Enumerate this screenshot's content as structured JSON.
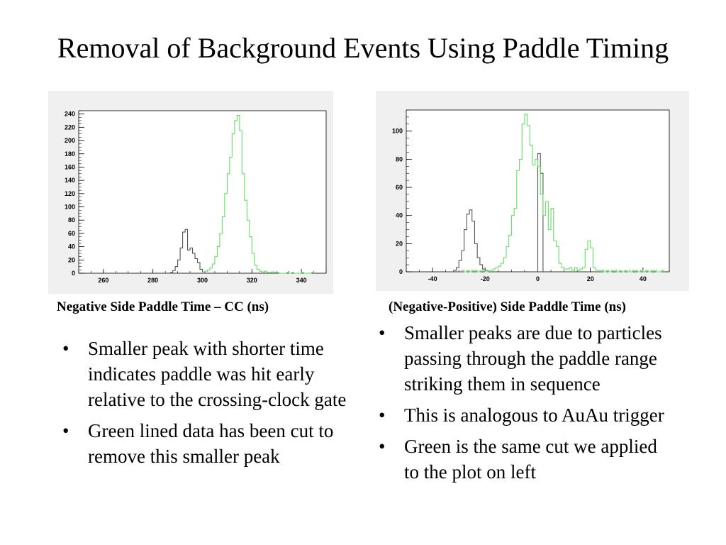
{
  "slide": {
    "title": "Removal of Background Events Using Paddle Timing"
  },
  "left": {
    "caption": "Negative Side Paddle Time – CC (ns)",
    "bullets": [
      "Smaller peak with shorter time indicates paddle was hit early relative to the crossing-clock gate",
      "Green lined data has been cut to remove this smaller peak"
    ]
  },
  "right": {
    "caption": "(Negative-Positive) Side Paddle Time (ns)",
    "bullets": [
      "Smaller peaks are due to particles passing through the paddle range striking them in sequence",
      "This is analogous to AuAu trigger",
      "Green is the same cut we applied to the plot on left"
    ]
  },
  "colors": {
    "all": "#555555",
    "cut": "#66dd66",
    "frame_bg": "#f0f0f0"
  },
  "chart_data": [
    {
      "type": "histogram",
      "xlim": [
        250,
        350
      ],
      "ylim": [
        0,
        245
      ],
      "xticks": [
        260,
        280,
        300,
        320,
        340
      ],
      "yticks": [
        0,
        20,
        40,
        60,
        80,
        100,
        120,
        140,
        160,
        180,
        200,
        220,
        240
      ],
      "bin_width": 1,
      "grid": false,
      "series": [
        {
          "x": [
            287,
            288,
            289,
            290,
            291,
            292,
            293,
            294,
            295,
            296,
            297,
            298,
            299,
            300
          ],
          "values": [
            1,
            4,
            10,
            20,
            38,
            62,
            66,
            35,
            38,
            30,
            22,
            16,
            6,
            2
          ]
        },
        {
          "x": [
            300,
            301,
            302,
            303,
            304,
            305,
            306,
            307,
            308,
            309,
            310,
            311,
            312,
            313,
            314,
            315,
            316,
            317,
            318,
            319,
            320,
            321,
            322,
            323,
            324,
            325,
            326,
            327,
            328,
            329,
            330,
            331,
            332,
            333,
            334,
            335,
            336,
            337,
            338,
            339,
            340,
            341,
            342,
            343,
            344
          ],
          "values": [
            2,
            3,
            5,
            8,
            14,
            25,
            40,
            60,
            85,
            120,
            150,
            175,
            210,
            230,
            238,
            215,
            150,
            110,
            80,
            55,
            30,
            12,
            6,
            3,
            2,
            3,
            1,
            1,
            2,
            1,
            1,
            0,
            0,
            0,
            1,
            0,
            1,
            0,
            0,
            0,
            1,
            0,
            0,
            0,
            1
          ]
        }
      ]
    },
    {
      "type": "histogram",
      "xlim": [
        -50,
        50
      ],
      "ylim": [
        0,
        115
      ],
      "xticks": [
        -40,
        -20,
        0,
        20,
        40
      ],
      "yticks": [
        0,
        20,
        40,
        60,
        80,
        100
      ],
      "bin_width": 1,
      "grid": false,
      "series": [
        {
          "x": [
            -32,
            -31,
            -30,
            -29,
            -28,
            -27,
            -26,
            -25,
            -24,
            -23,
            -22,
            -21,
            -20
          ],
          "values": [
            1,
            3,
            8,
            15,
            30,
            41,
            44,
            36,
            20,
            10,
            5,
            2,
            1
          ],
          "overlay": {
            "x": [
              0,
              1
            ],
            "values": [
              84,
              70
            ]
          }
        },
        {
          "x": [
            -29,
            -28,
            -27,
            -26,
            -25,
            -24,
            -23,
            -22,
            -21,
            -20,
            -19,
            -18,
            -17,
            -16,
            -15,
            -14,
            -13,
            -12,
            -11,
            -10,
            -9,
            -8,
            -7,
            -6,
            -5,
            -4,
            -3,
            -2,
            -1,
            0,
            1,
            2,
            3,
            4,
            5,
            6,
            7,
            8,
            9,
            10,
            11,
            12,
            13,
            14,
            15,
            16,
            17,
            18,
            19,
            20,
            21,
            22,
            23,
            24,
            25,
            26,
            27,
            28,
            29,
            30,
            31,
            32,
            33,
            34,
            35,
            36,
            37,
            38,
            39,
            40,
            41,
            42,
            43,
            44,
            45,
            46,
            47
          ],
          "values": [
            1,
            0,
            1,
            0,
            1,
            1,
            0,
            1,
            1,
            0,
            1,
            1,
            2,
            3,
            4,
            6,
            10,
            18,
            26,
            40,
            45,
            72,
            80,
            105,
            112,
            104,
            90,
            76,
            80,
            75,
            55,
            40,
            50,
            30,
            45,
            22,
            18,
            6,
            3,
            2,
            2,
            3,
            1,
            3,
            1,
            2,
            3,
            16,
            22,
            17,
            3,
            1,
            1,
            1,
            0,
            1,
            0,
            1,
            1,
            0,
            1,
            0,
            1,
            0,
            0,
            1,
            1,
            0,
            1,
            0,
            1,
            0,
            1,
            1,
            0,
            0,
            1
          ]
        }
      ]
    }
  ]
}
